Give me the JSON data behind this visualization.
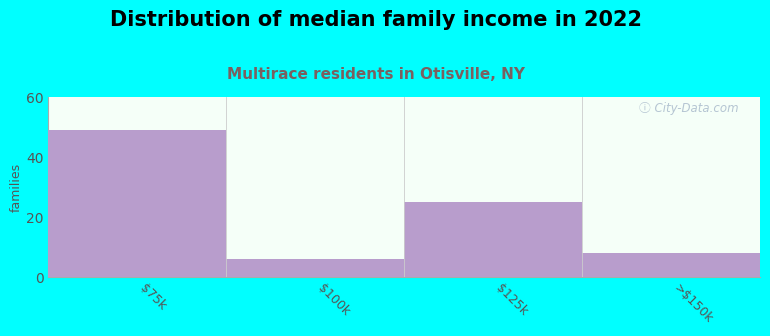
{
  "title": "Distribution of median family income in 2022",
  "subtitle": "Multirace residents in Otisville, NY",
  "categories": [
    "$75k",
    "$100k",
    "$125k",
    ">$150k"
  ],
  "bar_values": [
    49,
    6,
    25,
    8
  ],
  "bar_color": "#b89dcc",
  "plot_bg_top": "#f0fff5",
  "plot_bg": "#f5fff8",
  "outer_bg": "#00ffff",
  "ylim": [
    0,
    60
  ],
  "yticks": [
    0,
    20,
    40,
    60
  ],
  "ylabel": "families",
  "title_fontsize": 15,
  "subtitle_fontsize": 11,
  "subtitle_color": "#7a6060",
  "watermark": "ⓘ City-Data.com",
  "watermark_color": "#aabbcc"
}
